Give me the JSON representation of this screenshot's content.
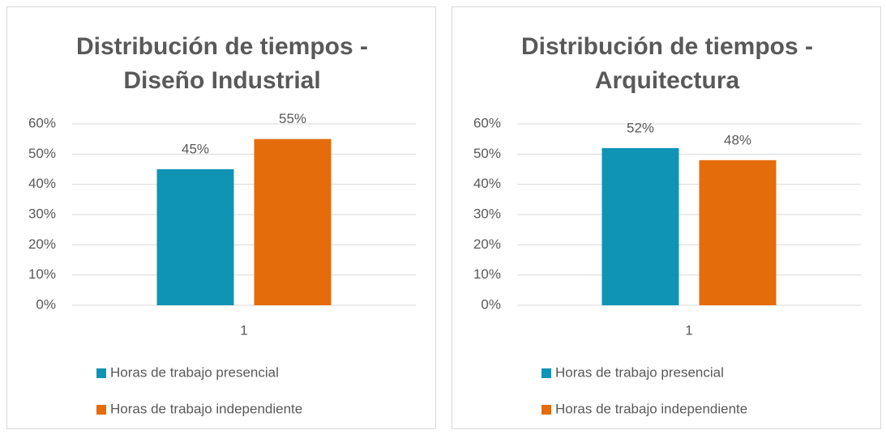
{
  "chart_data": [
    {
      "type": "bar",
      "title": "Distribución de tiempos - Diseño Industrial",
      "categories": [
        "1"
      ],
      "series": [
        {
          "name": "Horas de trabajo presencial",
          "color": "#0f94b5",
          "values": [
            45
          ],
          "value_labels": [
            "45%"
          ]
        },
        {
          "name": "Horas de trabajo independiente",
          "color": "#e46c0a",
          "values": [
            55
          ],
          "value_labels": [
            "55%"
          ]
        }
      ],
      "ylim": [
        0,
        60
      ],
      "yticks": [
        {
          "value": 0,
          "label": "0%"
        },
        {
          "value": 10,
          "label": "10%"
        },
        {
          "value": 20,
          "label": "20%"
        },
        {
          "value": 30,
          "label": "30%"
        },
        {
          "value": 40,
          "label": "40%"
        },
        {
          "value": 50,
          "label": "50%"
        },
        {
          "value": 60,
          "label": "60%"
        }
      ],
      "grid": true,
      "legend": "bottom"
    },
    {
      "type": "bar",
      "title": "Distribución de tiempos - Arquitectura",
      "categories": [
        "1"
      ],
      "series": [
        {
          "name": "Horas de trabajo presencial",
          "color": "#0f94b5",
          "values": [
            52
          ],
          "value_labels": [
            "52%"
          ]
        },
        {
          "name": "Horas de trabajo independiente",
          "color": "#e46c0a",
          "values": [
            48
          ],
          "value_labels": [
            "48%"
          ]
        }
      ],
      "ylim": [
        0,
        60
      ],
      "yticks": [
        {
          "value": 0,
          "label": "0%"
        },
        {
          "value": 10,
          "label": "10%"
        },
        {
          "value": 20,
          "label": "20%"
        },
        {
          "value": 30,
          "label": "30%"
        },
        {
          "value": 40,
          "label": "40%"
        },
        {
          "value": 50,
          "label": "50%"
        },
        {
          "value": 60,
          "label": "60%"
        }
      ],
      "grid": true,
      "legend": "bottom"
    }
  ]
}
